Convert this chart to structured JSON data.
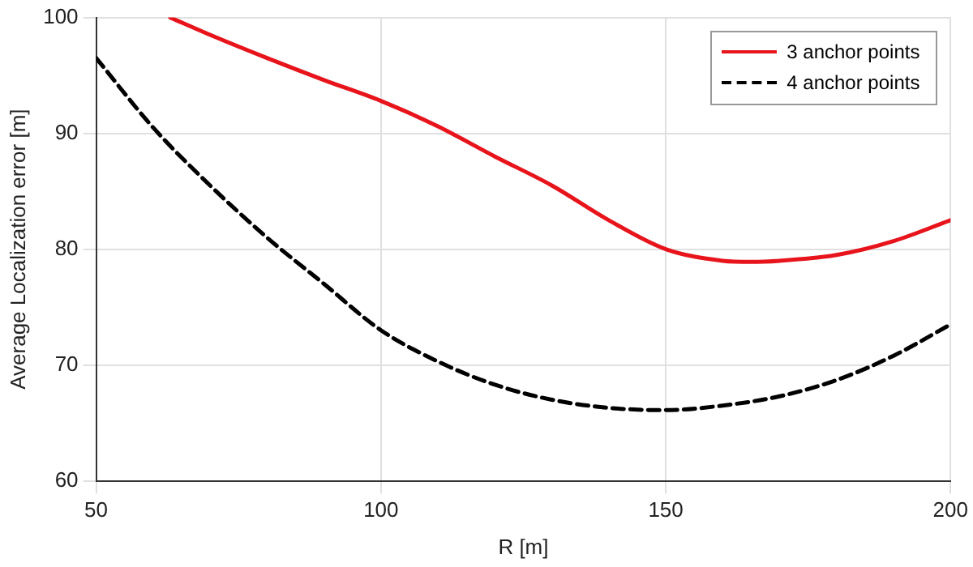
{
  "chart_data": {
    "type": "line",
    "xlabel": "R [m]",
    "ylabel": "Average Localization error [m]",
    "xlim": [
      50,
      200
    ],
    "xticks": [
      50,
      100,
      150,
      200
    ],
    "ylim": [
      60,
      100
    ],
    "yticks": [
      60,
      70,
      80,
      90,
      100
    ],
    "grid": true,
    "legend": "top right",
    "marker": "none",
    "series": [
      {
        "name": "3 anchor points",
        "color": "#e8141c",
        "line_style": "solid",
        "x": [
          63,
          70,
          80,
          90,
          100,
          110,
          120,
          130,
          140,
          150,
          160,
          165,
          170,
          180,
          190,
          200
        ],
        "values": [
          100,
          98.5,
          96.5,
          94.6,
          92.8,
          90.6,
          88,
          85.5,
          82.5,
          80,
          79,
          78.9,
          79,
          79.5,
          80.7,
          82.5
        ]
      },
      {
        "name": "4 anchor points",
        "color": "#000000",
        "line_style": "dashed",
        "x": [
          50,
          60,
          70,
          80,
          90,
          100,
          110,
          120,
          130,
          140,
          150,
          160,
          170,
          180,
          190,
          200
        ],
        "values": [
          96.5,
          90.5,
          85.5,
          81,
          77,
          73,
          70.3,
          68.3,
          67,
          66.3,
          66.1,
          66.5,
          67.3,
          68.7,
          70.8,
          73.5
        ]
      }
    ]
  }
}
